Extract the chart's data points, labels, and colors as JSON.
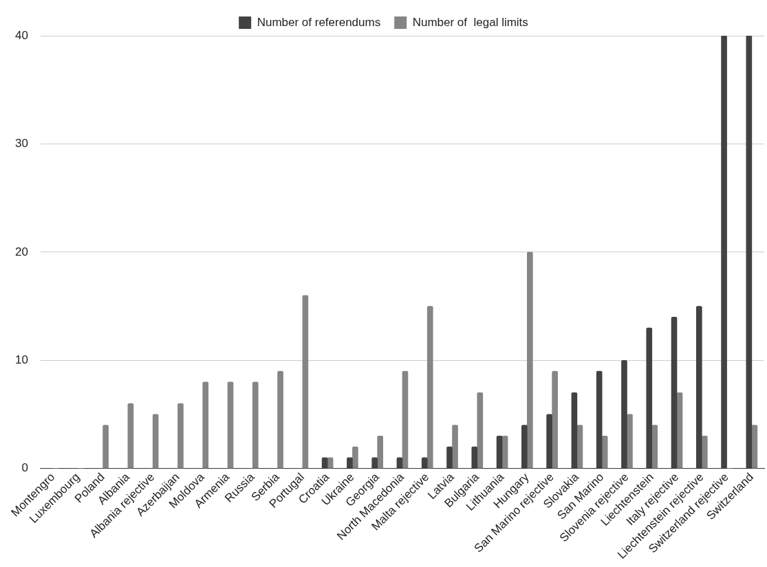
{
  "chart_data": {
    "type": "bar",
    "categories": [
      "Montengro",
      "Luxembourg",
      "Poland",
      "Albania",
      "Albania rejective",
      "Azerbaijan",
      "Moldova",
      "Armenia",
      "Russia",
      "Serbia",
      "Portugal",
      "Croatia",
      "Ukraine",
      "Georgia",
      "North Macedonia",
      "Malta rejective",
      "Latvia",
      "Bulgaria",
      "Lithuania",
      "Hungary",
      "San Marino rejective",
      "Slovakia",
      "San Marino",
      "Slovenia rejective",
      "Liechtenstein",
      "Italy rejective",
      "Liechtenstein rejective",
      "Switzerland rejective",
      "Switzerland"
    ],
    "series": [
      {
        "name": "Number of referendums",
        "color": "#424242",
        "values": [
          0,
          0,
          0,
          0,
          0,
          0,
          0,
          0,
          0,
          0,
          0,
          1,
          1,
          1,
          1,
          1,
          2,
          2,
          3,
          4,
          5,
          7,
          9,
          10,
          13,
          14,
          15,
          40,
          40
        ]
      },
      {
        "name": "Number of  legal limits",
        "color": "#858585",
        "values": [
          0,
          0,
          4,
          6,
          5,
          6,
          8,
          8,
          8,
          9,
          16,
          1,
          2,
          3,
          9,
          15,
          4,
          7,
          3,
          20,
          9,
          4,
          3,
          5,
          4,
          7,
          3,
          0,
          4
        ]
      }
    ],
    "ylim": [
      0,
      40
    ],
    "yticks": [
      0,
      10,
      20,
      30,
      40
    ],
    "grid": "y",
    "legend": "top"
  }
}
